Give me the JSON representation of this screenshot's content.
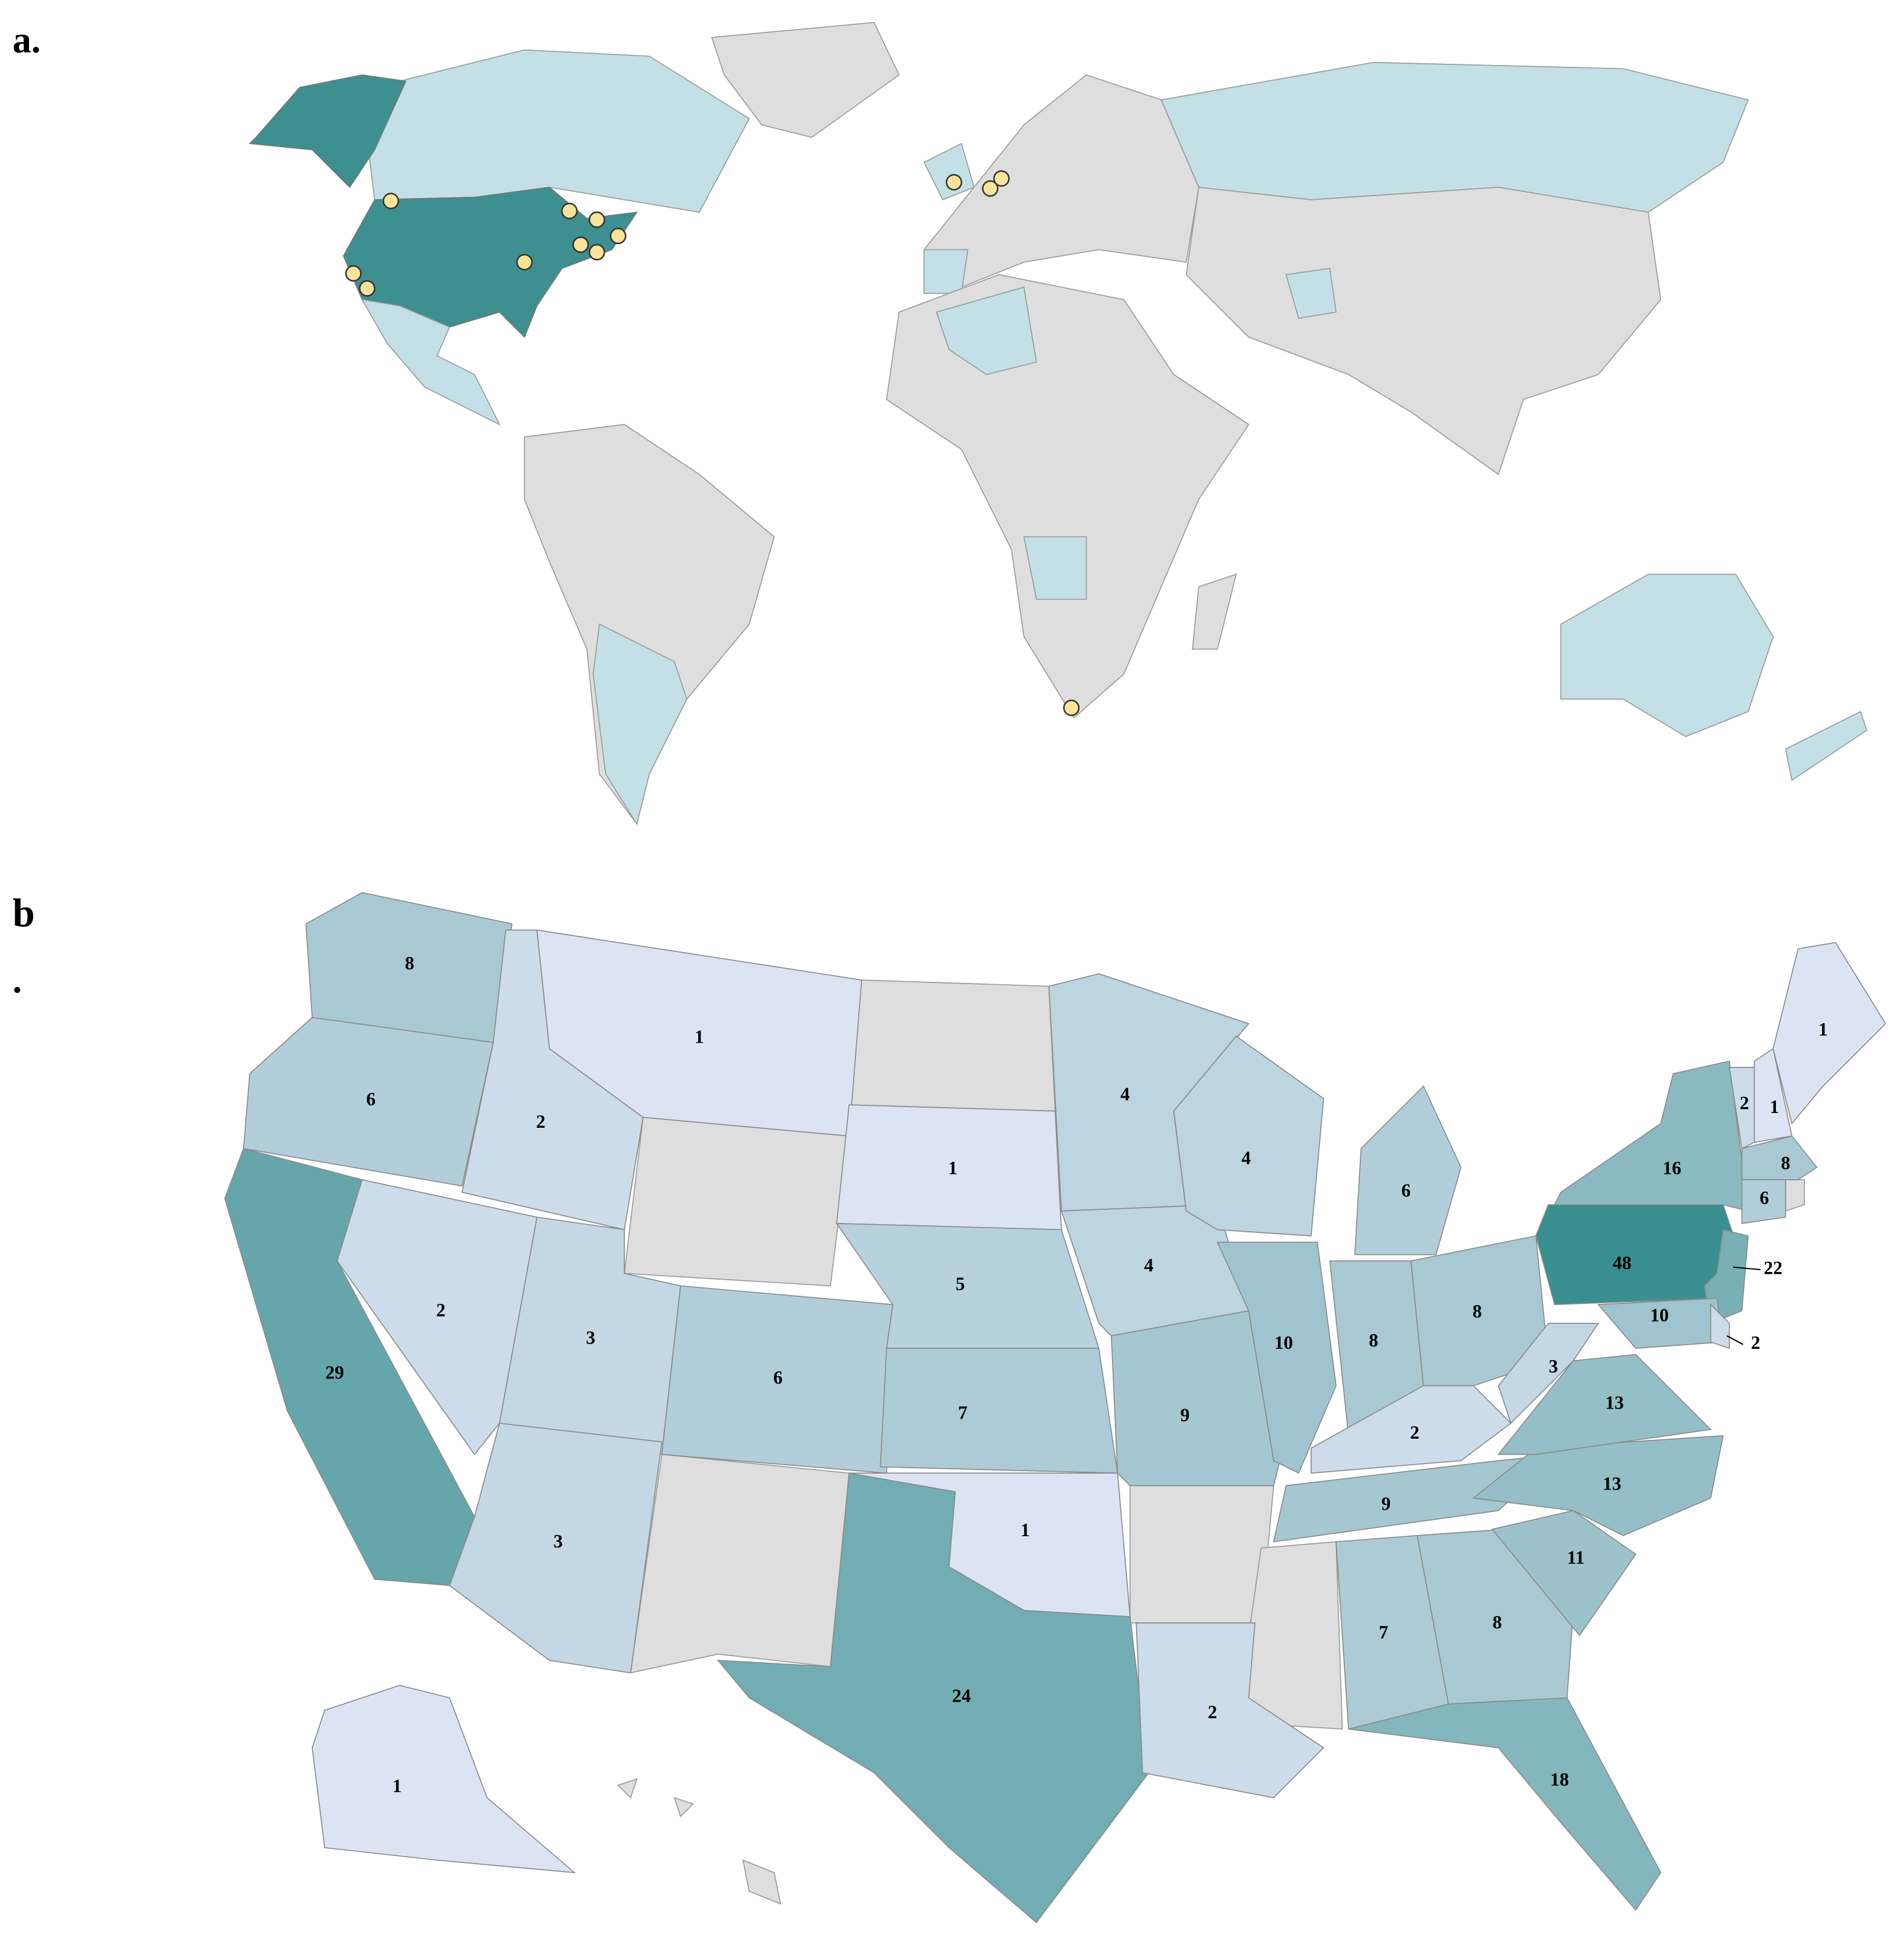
{
  "panel_a": {
    "label": "a."
  },
  "panel_b": {
    "label": "b",
    "label_dot": "."
  },
  "state_values": [
    8,
    6,
    29,
    2,
    2,
    1,
    3,
    6,
    3,
    1,
    5,
    7,
    1,
    24,
    4,
    4,
    9,
    2,
    4,
    10,
    6,
    8,
    8,
    2,
    9,
    7,
    8,
    18,
    11,
    13,
    13,
    3,
    48,
    16,
    22,
    10,
    2,
    2,
    1,
    1,
    8,
    6,
    1
  ]
}
